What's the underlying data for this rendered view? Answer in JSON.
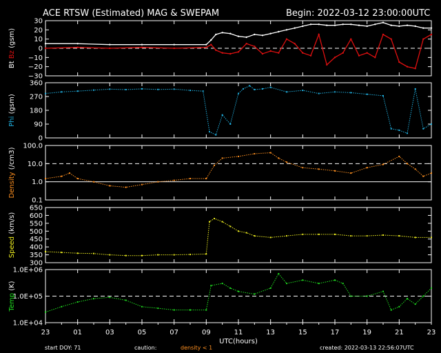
{
  "header": {
    "title": "ACE RTSW (Estimated) MAG & SWEPAM",
    "begin": "Begin: 2022-03-12 23:00:00UTC"
  },
  "footer": {
    "start_doy": "start DOY:  71",
    "caution": "caution:",
    "density_note": "density < 1",
    "created": "created: 2022-03-13 22:56:07UTC",
    "xlabel": "UTC(hours)"
  },
  "colors": {
    "bt": "#ffffff",
    "bz": "#e01010",
    "phi": "#20b0e0",
    "density": "#ff9020",
    "speed": "#f0f020",
    "temp": "#20e020",
    "caution": "#ff9020"
  },
  "chart_data": {
    "type": "line",
    "x_ticks": [
      "23",
      "01",
      "03",
      "05",
      "07",
      "09",
      "11",
      "13",
      "15",
      "17",
      "19",
      "21",
      "23"
    ],
    "x_range_hours": [
      0,
      24
    ],
    "panels": [
      {
        "id": "mag",
        "ylabel": [
          "Bt",
          "Bz",
          "(gsm)"
        ],
        "ylim": [
          -30,
          30
        ],
        "yticks": [
          "30",
          "20",
          "10",
          "0",
          "−10",
          "−20",
          "−30"
        ],
        "ref_line": 0,
        "series": [
          {
            "name": "Bt",
            "color": "#ffffff",
            "style": "step",
            "x": [
              0,
              2,
              4,
              6,
              8,
              10,
              10.3,
              10.6,
              11,
              11.5,
              12,
              12.5,
              13,
              13.5,
              14,
              14.5,
              15,
              15.5,
              16,
              16.5,
              17,
              17.5,
              18,
              18.5,
              19,
              19.5,
              20,
              20.5,
              21,
              21.5,
              22,
              22.5,
              23,
              23.5,
              24
            ],
            "y": [
              5,
              5,
              4,
              4,
              4,
              4,
              9,
              15,
              17,
              16,
              13,
              12,
              15,
              14,
              16,
              18,
              20,
              22,
              24,
              26,
              26,
              25,
              25,
              26,
              26,
              25,
              24,
              26,
              28,
              25,
              24,
              25,
              24,
              22,
              22
            ]
          },
          {
            "name": "Bz",
            "color": "#e01010",
            "style": "step",
            "x": [
              0,
              2,
              4,
              6,
              8,
              10,
              10.3,
              10.6,
              11,
              11.5,
              12,
              12.5,
              13,
              13.5,
              14,
              14.5,
              15,
              15.5,
              16,
              16.5,
              17,
              17.5,
              18,
              18.5,
              19,
              19.5,
              20,
              20.5,
              21,
              21.5,
              22,
              22.5,
              23,
              23.5,
              24
            ],
            "y": [
              0,
              1,
              0,
              1,
              0,
              1,
              4,
              -2,
              -5,
              -6,
              -4,
              5,
              2,
              -6,
              -3,
              -5,
              10,
              5,
              -5,
              -8,
              15,
              -18,
              -10,
              -5,
              10,
              -8,
              -5,
              -10,
              15,
              10,
              -15,
              -20,
              -22,
              10,
              15
            ]
          }
        ]
      },
      {
        "id": "phi",
        "ylabel": [
          "Phi",
          "(gsm)"
        ],
        "ylim": [
          0,
          360
        ],
        "yticks": [
          "360",
          "270",
          "180",
          "90",
          "0"
        ],
        "series": [
          {
            "name": "Phi",
            "color": "#20b0e0",
            "style": "scatter",
            "x": [
              0,
              1,
              2,
              3,
              4,
              5,
              6,
              7,
              8,
              9,
              9.8,
              10.2,
              10.6,
              11,
              11.5,
              12,
              12.3,
              12.7,
              13,
              13.5,
              14,
              15,
              16,
              17,
              18,
              19,
              20,
              21,
              21.5,
              22,
              22.5,
              23,
              23.5,
              24
            ],
            "y": [
              290,
              300,
              305,
              312,
              318,
              315,
              320,
              316,
              318,
              310,
              305,
              40,
              20,
              150,
              90,
              290,
              320,
              340,
              315,
              320,
              330,
              300,
              310,
              290,
              300,
              295,
              285,
              275,
              60,
              50,
              30,
              320,
              60,
              90
            ]
          }
        ]
      },
      {
        "id": "density",
        "ylabel": [
          "Density",
          "(/cm3)"
        ],
        "ylim": [
          0.1,
          100
        ],
        "log": true,
        "yticks": [
          "100.0",
          "10.0",
          "1.0",
          "0.1"
        ],
        "ref_lines": [
          1,
          10
        ],
        "series": [
          {
            "name": "Density",
            "color": "#ff9020",
            "style": "scatter",
            "x": [
              0,
              1,
              1.5,
              2,
              3,
              4,
              5,
              6,
              7,
              8,
              9,
              10,
              10.5,
              11,
              12,
              13,
              14,
              14.5,
              15,
              16,
              17,
              18,
              19,
              20,
              21,
              22,
              22.5,
              23,
              23.5,
              24
            ],
            "y": [
              1.5,
              2,
              3,
              1.5,
              1,
              0.6,
              0.5,
              0.7,
              1,
              1.2,
              1.5,
              1.5,
              8,
              20,
              25,
              35,
              40,
              20,
              12,
              6,
              5,
              4,
              3,
              6,
              9,
              25,
              10,
              5,
              2,
              3
            ]
          }
        ]
      },
      {
        "id": "speed",
        "ylabel": [
          "Speed",
          "(km/s)"
        ],
        "ylim": [
          300,
          650
        ],
        "yticks": [
          "650",
          "600",
          "550",
          "500",
          "450",
          "400",
          "350",
          "300"
        ],
        "series": [
          {
            "name": "Speed",
            "color": "#f0f020",
            "style": "scatter",
            "x": [
              0,
              1,
              2,
              3,
              4,
              5,
              6,
              7,
              8,
              9,
              10,
              10.2,
              10.5,
              11,
              11.5,
              12,
              12.5,
              13,
              14,
              15,
              16,
              17,
              18,
              19,
              20,
              21,
              22,
              23,
              24
            ],
            "y": [
              370,
              365,
              360,
              358,
              350,
              345,
              345,
              350,
              350,
              352,
              355,
              560,
              580,
              560,
              530,
              500,
              490,
              470,
              460,
              470,
              480,
              480,
              480,
              470,
              470,
              475,
              470,
              460,
              460
            ]
          }
        ]
      },
      {
        "id": "temp",
        "ylabel": [
          "Temp",
          "(K)"
        ],
        "ylim": [
          10000,
          1000000
        ],
        "log": true,
        "yticks": [
          "1.0E+06",
          "1.0E+05",
          "1.0E+04"
        ],
        "ref_line": 100000,
        "series": [
          {
            "name": "Temp",
            "color": "#20e020",
            "style": "scatter",
            "x": [
              0,
              1,
              2,
              3,
              4,
              5,
              6,
              7,
              8,
              9,
              10,
              10.3,
              11,
              11.5,
              12,
              13,
              14,
              14.5,
              15,
              16,
              17,
              18,
              18.5,
              19,
              20,
              21,
              21.5,
              22,
              22.5,
              23,
              23.5,
              24
            ],
            "y": [
              25000,
              40000,
              60000,
              80000,
              90000,
              70000,
              40000,
              35000,
              30000,
              30000,
              30000,
              250000,
              300000,
              200000,
              150000,
              120000,
              200000,
              700000,
              300000,
              400000,
              300000,
              400000,
              300000,
              100000,
              100000,
              150000,
              30000,
              40000,
              80000,
              50000,
              100000,
              200000
            ]
          }
        ]
      }
    ]
  }
}
